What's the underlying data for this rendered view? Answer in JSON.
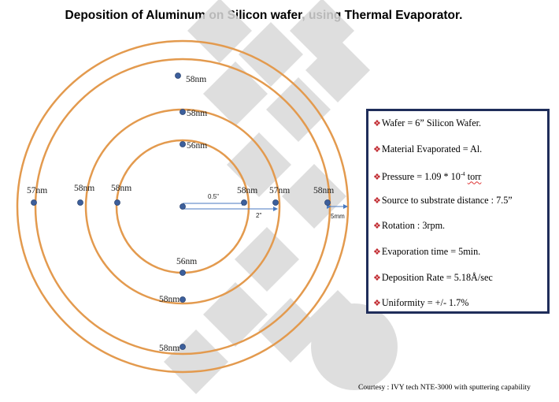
{
  "title": "Deposition of Aluminum on Silicon wafer, using Thermal Evaporator.",
  "thickness_labels": {
    "top_outer": "58nm",
    "top_middle": "58nm",
    "top_inner": "56nm",
    "left_outer": "57nm",
    "left_middle": "58nm",
    "left_inner": "58nm",
    "right_inner": "58nm",
    "right_middle": "57nm",
    "right_outer": "58nm",
    "bottom_inner": "56nm",
    "bottom_middle": "58nm",
    "bottom_outer": "58nm"
  },
  "dimension_labels": {
    "inner_radius": "0.5\"",
    "middle_radius": "2\"",
    "edge_gap": "5mm"
  },
  "info": {
    "wafer": "Wafer = 6” Silicon Wafer.",
    "material": "Material Evaporated = Al.",
    "pressure_prefix": "Pressure = 1.09 * 10",
    "pressure_exp": "-4",
    "pressure_unit": "torr",
    "distance": "Source to substrate distance : 7.5”",
    "rotation": "Rotation : 3rpm.",
    "evaporation_time": "Evaporation  time = 5min.",
    "deposition_rate": "Deposition Rate = 5.18Å/sec",
    "uniformity": "Uniformity = +/- 1.7%"
  },
  "courtesy": "Courtesy : IVY tech NTE-3000 with sputtering capability",
  "colors": {
    "ring": "#e39a4e",
    "point": "#3c5f9c",
    "box_border": "#1f2d5a",
    "bullet": "#c0272d",
    "watermark": "#d9d9d9"
  }
}
